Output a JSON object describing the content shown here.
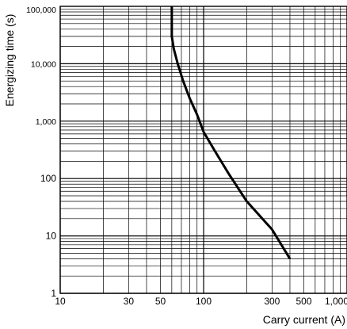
{
  "chart_data": {
    "type": "line",
    "title": "",
    "xlabel": "Carry current (A)",
    "ylabel": "Energizing time (s)",
    "x_scale": "log",
    "y_scale": "log",
    "xlim": [
      10,
      1000
    ],
    "ylim": [
      1,
      100000
    ],
    "grid": true,
    "x_ticks": [
      {
        "value": 10,
        "label": "10"
      },
      {
        "value": 30,
        "label": "30"
      },
      {
        "value": 50,
        "label": "50"
      },
      {
        "value": 100,
        "label": "100"
      },
      {
        "value": 300,
        "label": "300"
      },
      {
        "value": 500,
        "label": "500"
      },
      {
        "value": 1000,
        "label": "1,000"
      }
    ],
    "y_ticks": [
      {
        "value": 1,
        "label": "1"
      },
      {
        "value": 10,
        "label": "10"
      },
      {
        "value": 100,
        "label": "100"
      },
      {
        "value": 1000,
        "label": "1,000"
      },
      {
        "value": 10000,
        "label": "10,000"
      },
      {
        "value": 100000,
        "label": "100,000"
      }
    ],
    "series": [
      {
        "color": "#000000",
        "points": [
          [
            60,
            100000
          ],
          [
            60,
            30000
          ],
          [
            62,
            18000
          ],
          [
            66,
            10000
          ],
          [
            72,
            5000
          ],
          [
            80,
            2500
          ],
          [
            90,
            1300
          ],
          [
            100,
            650
          ],
          [
            120,
            300
          ],
          [
            150,
            120
          ],
          [
            200,
            40
          ],
          [
            300,
            13
          ],
          [
            400,
            4
          ]
        ]
      }
    ]
  }
}
